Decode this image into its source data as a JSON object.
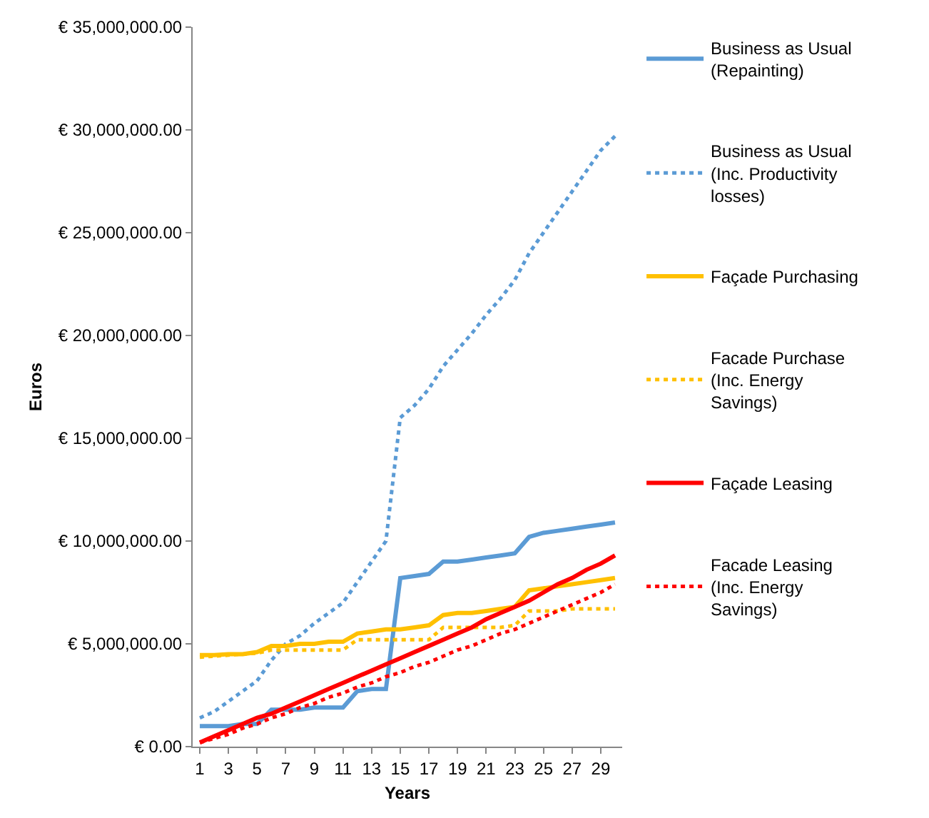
{
  "chart_data": {
    "type": "line",
    "xlabel": "Years",
    "ylabel": "Euros",
    "x": [
      1,
      2,
      3,
      4,
      5,
      6,
      7,
      8,
      9,
      10,
      11,
      12,
      13,
      14,
      15,
      16,
      17,
      18,
      19,
      20,
      21,
      22,
      23,
      24,
      25,
      26,
      27,
      28,
      29,
      30
    ],
    "xlim": [
      0.5,
      30.5
    ],
    "xticks": [
      1,
      3,
      5,
      7,
      9,
      11,
      13,
      15,
      17,
      19,
      21,
      23,
      25,
      27,
      29
    ],
    "ylim": [
      0,
      35000000
    ],
    "yticks": [
      {
        "value": 0,
        "label": "€ 0.00"
      },
      {
        "value": 5000000,
        "label": "€ 5,000,000.00"
      },
      {
        "value": 10000000,
        "label": "€ 10,000,000.00"
      },
      {
        "value": 15000000,
        "label": "€ 15,000,000.00"
      },
      {
        "value": 20000000,
        "label": "€ 20,000,000.00"
      },
      {
        "value": 25000000,
        "label": "€ 25,000,000.00"
      },
      {
        "value": 30000000,
        "label": "€ 30,000,000.00"
      },
      {
        "value": 35000000,
        "label": "€ 35,000,000.00"
      }
    ],
    "legend": "right",
    "marker": "none",
    "series": [
      {
        "name": "Business as Usual (Repainting)",
        "color": "#5b9bd5",
        "line_style": "solid",
        "values": [
          1000000,
          1000000,
          1000000,
          1100000,
          1100000,
          1800000,
          1800000,
          1800000,
          1900000,
          1900000,
          1900000,
          2700000,
          2800000,
          2800000,
          8200000,
          8300000,
          8400000,
          9000000,
          9000000,
          9100000,
          9200000,
          9300000,
          9400000,
          10200000,
          10400000,
          10500000,
          10600000,
          10700000,
          10800000,
          10900000
        ]
      },
      {
        "name": "Business as Usual (Inc. Productivity losses)",
        "color": "#5b9bd5",
        "line_style": "dotted",
        "values": [
          1400000,
          1700000,
          2200000,
          2700000,
          3200000,
          4200000,
          5000000,
          5400000,
          6000000,
          6500000,
          7000000,
          8000000,
          9000000,
          10000000,
          16000000,
          16600000,
          17400000,
          18500000,
          19300000,
          20100000,
          21000000,
          21800000,
          22700000,
          24000000,
          25000000,
          26000000,
          27000000,
          28000000,
          29000000,
          29700000
        ]
      },
      {
        "name": "Façade Purchasing",
        "color": "#ffc000",
        "line_style": "solid",
        "values": [
          4450000,
          4450000,
          4500000,
          4500000,
          4600000,
          4900000,
          4900000,
          5000000,
          5000000,
          5100000,
          5100000,
          5500000,
          5600000,
          5700000,
          5700000,
          5800000,
          5900000,
          6400000,
          6500000,
          6500000,
          6600000,
          6700000,
          6800000,
          7600000,
          7700000,
          7800000,
          7900000,
          8000000,
          8100000,
          8200000
        ]
      },
      {
        "name": "Facade Purchase (Inc. Energy Savings)",
        "color": "#ffc000",
        "line_style": "dotted",
        "values": [
          4350000,
          4400000,
          4450000,
          4500000,
          4550000,
          4700000,
          4700000,
          4700000,
          4700000,
          4700000,
          4700000,
          5200000,
          5200000,
          5200000,
          5200000,
          5200000,
          5200000,
          5800000,
          5800000,
          5800000,
          5800000,
          5800000,
          5900000,
          6600000,
          6600000,
          6600000,
          6700000,
          6700000,
          6700000,
          6700000
        ]
      },
      {
        "name": "Façade Leasing",
        "color": "#ff0000",
        "line_style": "solid",
        "values": [
          200000,
          500000,
          800000,
          1100000,
          1400000,
          1600000,
          1900000,
          2200000,
          2500000,
          2800000,
          3100000,
          3400000,
          3700000,
          4000000,
          4300000,
          4600000,
          4900000,
          5200000,
          5500000,
          5800000,
          6200000,
          6500000,
          6800000,
          7100000,
          7500000,
          7900000,
          8200000,
          8600000,
          8900000,
          9300000
        ]
      },
      {
        "name": "Facade Leasing (Inc. Energy Savings)",
        "color": "#ff0000",
        "line_style": "dotted",
        "values": [
          200000,
          400000,
          600000,
          900000,
          1100000,
          1400000,
          1600000,
          1900000,
          2100000,
          2400000,
          2600000,
          2900000,
          3100000,
          3400000,
          3600000,
          3900000,
          4100000,
          4400000,
          4700000,
          4900000,
          5200000,
          5500000,
          5700000,
          6000000,
          6300000,
          6600000,
          6900000,
          7200000,
          7500000,
          7900000
        ]
      }
    ]
  }
}
